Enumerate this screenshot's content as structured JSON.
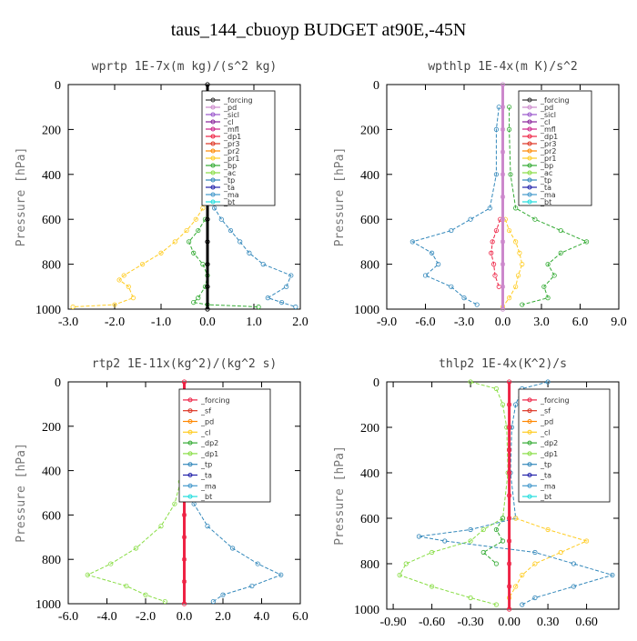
{
  "title": "taus_144_cbuoyp  BUDGET at90E,-45N",
  "chart_data": [
    {
      "type": "line",
      "title": "wprtp  1E-7x(m kg)/(s^2 kg)",
      "ylabel": "Pressure [hPa]",
      "xlim": [
        -3.0,
        2.0
      ],
      "ylim": [
        1000,
        0
      ],
      "xticks": [
        "-3.0",
        "-2.0",
        "-1.0",
        "0.0",
        "1.0",
        "2.0"
      ],
      "xtick_values": [
        -3,
        -2,
        -1,
        0,
        1,
        2
      ],
      "yticks": [
        "0",
        "200",
        "400",
        "600",
        "800",
        "1000"
      ],
      "ytick_values": [
        0,
        200,
        400,
        600,
        800,
        1000
      ],
      "legend": [
        "_forcing",
        "_pd",
        "_sicl",
        "_cl",
        "_mfl",
        "_dp1",
        "_pr3",
        "_pr2",
        "_pr1",
        "_bp",
        "_ac",
        "_tp",
        "_ta",
        "_ma",
        "_bt"
      ],
      "legend_colors": [
        "#333333",
        "#cc88cc",
        "#9955cc",
        "#882299",
        "#cc2288",
        "#ee2244",
        "#dd3322",
        "#ff8800",
        "#ffcc22",
        "#33aa33",
        "#88dd44",
        "#3388bb",
        "#2222aa",
        "#4499cc",
        "#22dddd"
      ],
      "series": [
        {
          "name": "_pr1",
          "color": "#ffcc22",
          "y": [
            550,
            600,
            650,
            700,
            750,
            800,
            850,
            870,
            900,
            950,
            980,
            990
          ],
          "x": [
            -0.1,
            -0.25,
            -0.45,
            -0.7,
            -1.0,
            -1.4,
            -1.8,
            -1.9,
            -1.7,
            -1.6,
            -2.0,
            -2.9
          ]
        },
        {
          "name": "_bp",
          "color": "#33aa33",
          "y": [
            600,
            650,
            700,
            750,
            800,
            850,
            900,
            950,
            970,
            980,
            990
          ],
          "x": [
            -0.05,
            -0.2,
            -0.4,
            -0.3,
            -0.1,
            0.0,
            -0.05,
            -0.2,
            -0.3,
            0.0,
            1.1
          ]
        },
        {
          "name": "_tp",
          "color": "#3388bb",
          "y": [
            500,
            550,
            600,
            650,
            700,
            750,
            800,
            850,
            900,
            950,
            970,
            990
          ],
          "x": [
            0.05,
            0.15,
            0.3,
            0.5,
            0.7,
            0.9,
            1.2,
            1.8,
            1.7,
            1.3,
            1.6,
            1.9
          ]
        },
        {
          "name": "_forcing",
          "color": "#000000",
          "y": [
            0,
            100,
            200,
            300,
            400,
            500,
            600,
            700,
            800,
            900,
            1000
          ],
          "x": [
            0,
            0,
            0,
            0,
            0,
            0,
            0,
            0,
            0,
            0,
            0
          ]
        }
      ]
    },
    {
      "type": "line",
      "title": "wpthlp  1E-4x(m K)/s^2",
      "ylabel": "Pressure [hPa]",
      "xlim": [
        -9.0,
        9.0
      ],
      "ylim": [
        1000,
        0
      ],
      "xticks": [
        "-9.0",
        "-6.0",
        "-3.0",
        "0.0",
        "3.0",
        "6.0",
        "9.0"
      ],
      "xtick_values": [
        -9,
        -6,
        -3,
        0,
        3,
        6,
        9
      ],
      "yticks": [
        "0",
        "200",
        "400",
        "600",
        "800",
        "1000"
      ],
      "ytick_values": [
        0,
        200,
        400,
        600,
        800,
        1000
      ],
      "legend": [
        "_forcing",
        "_pd",
        "_sicl",
        "_cl",
        "_mfl",
        "_dp1",
        "_pr3",
        "_pr2",
        "_pr1",
        "_bp",
        "_ac",
        "_tp",
        "_ta",
        "_ma",
        "_bt"
      ],
      "legend_colors": [
        "#333333",
        "#cc88cc",
        "#9955cc",
        "#882299",
        "#cc2288",
        "#ee2244",
        "#dd3322",
        "#ff8800",
        "#ffcc22",
        "#33aa33",
        "#88dd44",
        "#3388bb",
        "#2222aa",
        "#4499cc",
        "#22dddd"
      ],
      "series": [
        {
          "name": "_tp",
          "color": "#3388bb",
          "y": [
            100,
            200,
            400,
            550,
            600,
            650,
            700,
            750,
            800,
            850,
            900,
            950,
            980
          ],
          "x": [
            -0.3,
            -0.5,
            -0.5,
            -1.0,
            -2.5,
            -4.0,
            -7.0,
            -5.5,
            -5.0,
            -6.0,
            -4.0,
            -3.0,
            -2.0
          ]
        },
        {
          "name": "_bp",
          "color": "#33aa33",
          "y": [
            100,
            200,
            400,
            550,
            600,
            650,
            700,
            750,
            800,
            850,
            900,
            950,
            980
          ],
          "x": [
            0.5,
            0.5,
            0.6,
            1.0,
            2.5,
            4.5,
            6.5,
            4.5,
            3.5,
            4.0,
            3.2,
            3.5,
            1.5
          ]
        },
        {
          "name": "_pr1",
          "color": "#ffcc22",
          "y": [
            600,
            650,
            700,
            750,
            800,
            850,
            900,
            950,
            990
          ],
          "x": [
            0.2,
            0.5,
            1.0,
            1.3,
            1.5,
            1.2,
            1.0,
            0.5,
            0.0
          ]
        },
        {
          "name": "_dp1",
          "color": "#ee2244",
          "y": [
            600,
            650,
            700,
            750,
            800,
            850,
            900
          ],
          "x": [
            -0.2,
            -0.5,
            -0.8,
            -0.9,
            -0.7,
            -0.6,
            -0.3
          ]
        },
        {
          "name": "_pd",
          "color": "#cc88cc",
          "y": [
            0,
            100,
            200,
            300,
            400,
            500,
            600,
            700,
            800,
            900,
            1000
          ],
          "x": [
            0,
            0,
            0,
            0,
            0,
            0,
            0,
            0,
            0,
            0,
            0
          ]
        }
      ]
    },
    {
      "type": "line",
      "title": "rtp2  1E-11x(kg^2)/(kg^2 s)",
      "ylabel": "Pressure [hPa]",
      "xlim": [
        -6.0,
        6.0
      ],
      "ylim": [
        1000,
        0
      ],
      "xticks": [
        "-6.0",
        "-4.0",
        "-2.0",
        "0.0",
        "2.0",
        "4.0",
        "6.0"
      ],
      "xtick_values": [
        -6,
        -4,
        -2,
        0,
        2,
        4,
        6
      ],
      "yticks": [
        "0",
        "200",
        "400",
        "600",
        "800",
        "1000"
      ],
      "ytick_values": [
        0,
        200,
        400,
        600,
        800,
        1000
      ],
      "legend": [
        "_forcing",
        "_sf",
        "_pd",
        "_cl",
        "_dp2",
        "_dp1",
        "_tp",
        "_ta",
        "_ma",
        "_bt"
      ],
      "legend_colors": [
        "#ee2244",
        "#dd3322",
        "#ff8800",
        "#ffcc22",
        "#33aa33",
        "#88dd44",
        "#3388bb",
        "#2222aa",
        "#4499cc",
        "#22dddd"
      ],
      "series": [
        {
          "name": "_dp1",
          "color": "#88dd44",
          "y": [
            450,
            550,
            650,
            750,
            820,
            870,
            920,
            960,
            990
          ],
          "x": [
            -0.2,
            -0.5,
            -1.2,
            -2.5,
            -3.8,
            -5.0,
            -3.0,
            -2.0,
            -1.0
          ]
        },
        {
          "name": "_tp",
          "color": "#3388bb",
          "y": [
            450,
            550,
            650,
            750,
            820,
            870,
            920,
            960,
            990
          ],
          "x": [
            0.2,
            0.5,
            1.2,
            2.5,
            3.8,
            5.0,
            3.5,
            2.0,
            1.5
          ]
        },
        {
          "name": "_forcing",
          "color": "#ee2244",
          "y": [
            0,
            100,
            200,
            300,
            400,
            500,
            600,
            700,
            800,
            900,
            1000
          ],
          "x": [
            0,
            0,
            0,
            0,
            0,
            0,
            0,
            0,
            0,
            0,
            0
          ]
        }
      ]
    },
    {
      "type": "line",
      "title": "thlp2  1E-4x(K^2)/s",
      "ylabel": "Pressure [hPa]",
      "xlim": [
        -0.95,
        0.85
      ],
      "ylim": [
        1000,
        0
      ],
      "xticks": [
        "-0.90",
        "-0.60",
        "-0.30",
        "0.00",
        "0.30",
        "0.60"
      ],
      "xtick_values": [
        -0.9,
        -0.6,
        -0.3,
        0.0,
        0.3,
        0.6
      ],
      "yticks": [
        "0",
        "200",
        "400",
        "600",
        "800",
        "1000"
      ],
      "ytick_values": [
        0,
        200,
        400,
        600,
        800,
        1000
      ],
      "legend": [
        "_forcing",
        "_sf",
        "_pd",
        "_cl",
        "_dp2",
        "_dp1",
        "_tp",
        "_ta",
        "_ma",
        "_bt"
      ],
      "legend_colors": [
        "#ee2244",
        "#dd3322",
        "#ff8800",
        "#ffcc22",
        "#33aa33",
        "#88dd44",
        "#3388bb",
        "#2222aa",
        "#4499cc",
        "#22dddd"
      ],
      "series": [
        {
          "name": "_tp",
          "color": "#3388bb",
          "y": [
            0,
            30,
            100,
            200,
            400,
            600,
            650,
            680,
            700,
            750,
            800,
            850,
            900,
            950,
            980
          ],
          "x": [
            0.3,
            0.1,
            0.05,
            0.02,
            0.01,
            0.05,
            -0.3,
            -0.7,
            -0.5,
            0.2,
            0.5,
            0.8,
            0.5,
            0.2,
            0.1
          ]
        },
        {
          "name": "_dp1",
          "color": "#88dd44",
          "y": [
            0,
            30,
            100,
            200,
            400,
            600,
            650,
            700,
            750,
            800,
            850,
            900,
            950,
            980
          ],
          "x": [
            -0.3,
            -0.1,
            -0.05,
            -0.02,
            -0.01,
            -0.05,
            -0.2,
            -0.3,
            -0.6,
            -0.8,
            -0.85,
            -0.6,
            -0.3,
            -0.1
          ]
        },
        {
          "name": "_cl",
          "color": "#ffcc22",
          "y": [
            600,
            650,
            700,
            750,
            800,
            850,
            900,
            950
          ],
          "x": [
            0.05,
            0.3,
            0.6,
            0.4,
            0.2,
            0.1,
            0.05,
            0.0
          ]
        },
        {
          "name": "_dp2",
          "color": "#33aa33",
          "y": [
            600,
            650,
            700,
            750,
            800
          ],
          "x": [
            -0.05,
            -0.1,
            -0.05,
            -0.2,
            -0.1
          ]
        },
        {
          "name": "_forcing",
          "color": "#ee2244",
          "y": [
            0,
            100,
            200,
            300,
            400,
            500,
            600,
            700,
            800,
            900,
            1000
          ],
          "x": [
            0,
            0,
            0,
            0,
            0,
            0,
            0,
            0,
            0,
            0,
            0
          ]
        }
      ]
    }
  ]
}
